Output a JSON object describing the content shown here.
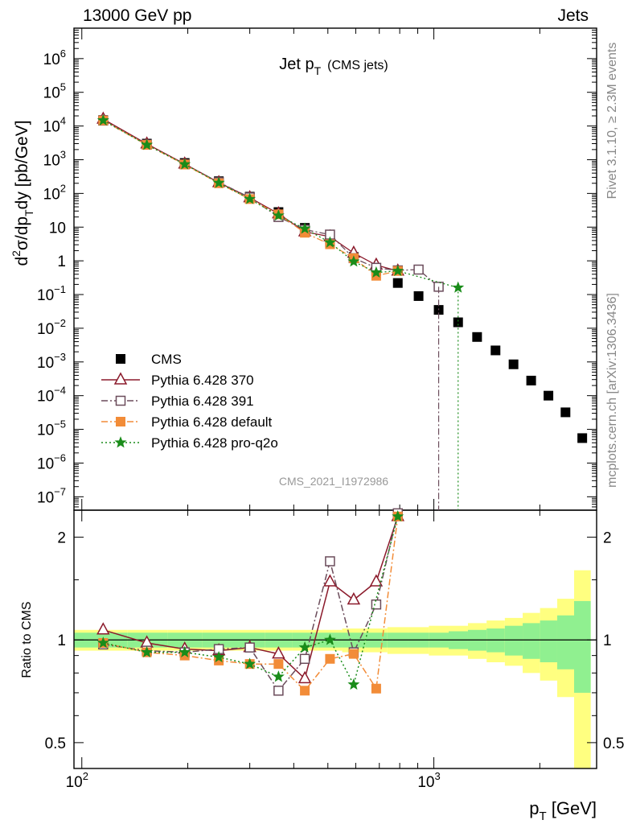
{
  "header": {
    "left": "13000 GeV pp",
    "right": "Jets",
    "side_right_top": "Rivet 3.1.10, ≥ 2.3M events",
    "side_right_bottom": "mcplots.cern.ch [arXiv:1306.3436]",
    "watermark": "CMS_2021_I1972986"
  },
  "chart_data": [
    {
      "panel": "main",
      "type": "scatter",
      "title_main": "Jet p",
      "title_sub": "T",
      "title_suffix": "(CMS jets)",
      "ylabel_parts": [
        "d",
        "2",
        "σ/dp",
        "T",
        "dy [pb/GeV]"
      ],
      "yscale": "log",
      "xscale": "log",
      "xlim": [
        95,
        2900
      ],
      "ylim": [
        4e-08,
        8000000
      ],
      "ytick_labels": [
        "10^{-7}",
        "10^{-6}",
        "10^{-5}",
        "10^{-4}",
        "10^{-3}",
        "10^{-2}",
        "10^{-1}",
        "1",
        "10",
        "10^{2}",
        "10^{3}",
        "10^{4}",
        "10^{5}",
        "10^{6}"
      ],
      "legend_position": "bottom-left",
      "series": [
        {
          "name": "CMS",
          "color": "#000000",
          "marker": "filled-square",
          "x": [
            115,
            153,
            196,
            245,
            300,
            362,
            430,
            507,
            592,
            686,
            790,
            905,
            1032,
            1172,
            1327,
            1497,
            1684,
            1890,
            2116,
            2366,
            2640
          ],
          "y": [
            15000,
            3000,
            800,
            230,
            80,
            28,
            9.5,
            3.5,
            1.3,
            0.5,
            0.22,
            0.09,
            0.035,
            0.015,
            0.0055,
            0.0022,
            0.00085,
            0.00028,
            0.0001,
            3.2e-05,
            5.5e-06
          ]
        },
        {
          "name": "Pythia 6.428 370",
          "color": "#8B1A2B",
          "marker": "open-triangle",
          "linestyle": "solid",
          "x": [
            115,
            153,
            196,
            245,
            300,
            362,
            430,
            507,
            592,
            686,
            790
          ],
          "y": [
            16000,
            2950,
            750,
            210,
            75,
            25,
            7.3,
            5.2,
            1.7,
            0.75,
            0.5
          ]
        },
        {
          "name": "Pythia 6.428 391",
          "color": "#6B4C5B",
          "marker": "open-square",
          "linestyle": "dash-dot",
          "x": [
            115,
            153,
            196,
            245,
            300,
            362,
            430,
            507,
            592,
            686,
            790,
            905,
            1032
          ],
          "y": [
            14500,
            2800,
            730,
            215,
            76,
            20,
            8.4,
            6.0,
            1.2,
            0.62,
            0.52,
            0.55,
            0.17
          ]
        },
        {
          "name": "Pythia 6.428 default",
          "color": "#F28C38",
          "marker": "filled-square",
          "linestyle": "dash-dot",
          "x": [
            115,
            153,
            196,
            245,
            300,
            362,
            430,
            507,
            592,
            686,
            790
          ],
          "y": [
            14600,
            2750,
            720,
            200,
            68,
            24,
            6.8,
            3.1,
            1.2,
            0.36,
            0.5
          ]
        },
        {
          "name": "Pythia 6.428 pro-q2o",
          "color": "#1A8C1A",
          "marker": "star",
          "linestyle": "dotted",
          "x": [
            115,
            153,
            196,
            245,
            300,
            362,
            430,
            507,
            592,
            686,
            790,
            1172
          ],
          "y": [
            14700,
            2750,
            730,
            205,
            68,
            22,
            9.0,
            3.5,
            0.95,
            0.45,
            0.5,
            0.16
          ]
        }
      ]
    },
    {
      "panel": "ratio",
      "type": "line",
      "ylabel": "Ratio to CMS",
      "xlabel_parts": [
        "p",
        "T",
        " [GeV]"
      ],
      "yscale": "log",
      "xscale": "log",
      "xlim": [
        95,
        2900
      ],
      "ylim": [
        0.42,
        2.4
      ],
      "ytick_labels": [
        "0.5",
        "1",
        "2"
      ],
      "xtick_labels": [
        "10",
        "2",
        "10",
        "3"
      ],
      "band_inner_color": "#90F090",
      "band_outer_color": "#FFFF80",
      "band_edges": [
        95,
        135,
        175,
        220,
        272,
        331,
        396,
        468,
        549,
        639,
        738,
        847,
        968,
        1102,
        1250,
        1412,
        1591,
        1788,
        2003,
        2241,
        2503,
        2790
      ],
      "band_inner": [
        0.05,
        0.05,
        0.05,
        0.05,
        0.05,
        0.05,
        0.05,
        0.05,
        0.05,
        0.05,
        0.05,
        0.05,
        0.05,
        0.06,
        0.07,
        0.08,
        0.1,
        0.12,
        0.14,
        0.18,
        0.3
      ],
      "band_outer": [
        0.07,
        0.07,
        0.07,
        0.07,
        0.07,
        0.07,
        0.07,
        0.07,
        0.08,
        0.08,
        0.09,
        0.09,
        0.1,
        0.1,
        0.12,
        0.14,
        0.16,
        0.2,
        0.24,
        0.32,
        0.6
      ],
      "series": [
        {
          "name": "Pythia 6.428 370",
          "color": "#8B1A2B",
          "marker": "open-triangle",
          "linestyle": "solid",
          "x": [
            115,
            153,
            196,
            245,
            300,
            362,
            430,
            507,
            592,
            686,
            790
          ],
          "y": [
            1.07,
            0.98,
            0.94,
            0.93,
            0.95,
            0.91,
            0.77,
            1.48,
            1.31,
            1.48,
            2.3
          ]
        },
        {
          "name": "Pythia 6.428 391",
          "color": "#6B4C5B",
          "marker": "open-square",
          "linestyle": "dash-dot",
          "x": [
            115,
            153,
            196,
            245,
            300,
            362,
            430,
            507,
            592,
            686,
            790
          ],
          "y": [
            0.97,
            0.93,
            0.92,
            0.94,
            0.95,
            0.71,
            0.88,
            1.7,
            0.92,
            1.27,
            2.35
          ]
        },
        {
          "name": "Pythia 6.428 default",
          "color": "#F28C38",
          "marker": "filled-square",
          "linestyle": "dash-dot",
          "x": [
            115,
            153,
            196,
            245,
            300,
            362,
            430,
            507,
            592,
            686,
            790
          ],
          "y": [
            0.98,
            0.92,
            0.9,
            0.87,
            0.85,
            0.85,
            0.71,
            0.88,
            0.91,
            0.72,
            2.3
          ]
        },
        {
          "name": "Pythia 6.428 pro-q2o",
          "color": "#1A8C1A",
          "marker": "star",
          "linestyle": "dotted",
          "x": [
            115,
            153,
            196,
            245,
            300,
            362,
            430,
            507,
            592,
            790
          ],
          "y": [
            0.98,
            0.92,
            0.92,
            0.89,
            0.85,
            0.78,
            0.95,
            1.0,
            0.74,
            2.3
          ]
        }
      ]
    }
  ]
}
